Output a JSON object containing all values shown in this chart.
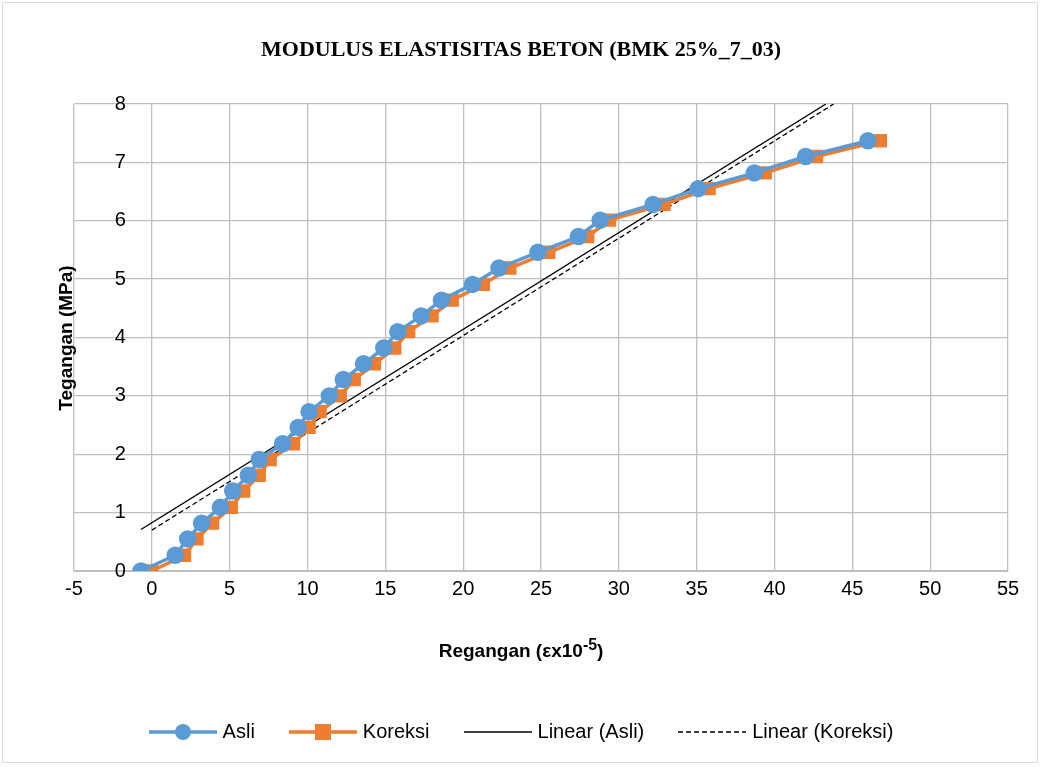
{
  "chart_data": {
    "type": "line",
    "title": "MODULUS ELASTISITAS BETON (BMK 25%_7_03)",
    "xlabel": "Regangan (εx10$^{-5}$)",
    "ylabel": "Tegangan (MPa)",
    "xlim": [
      -5,
      55
    ],
    "xticks": [
      -5,
      0,
      5,
      10,
      15,
      20,
      25,
      30,
      35,
      40,
      45,
      50,
      55
    ],
    "ylim": [
      0,
      8
    ],
    "yticks": [
      0,
      1,
      2,
      3,
      4,
      5,
      6,
      7,
      8
    ],
    "grid": true,
    "legend": "bottom",
    "series": [
      {
        "name": "Asli",
        "color": "#5b9bd5",
        "marker": "circle",
        "line_style": "solid",
        "x": [
          -0.7,
          1.5,
          2.3,
          3.2,
          4.4,
          5.2,
          6.2,
          6.9,
          8.4,
          9.4,
          10.1,
          11.4,
          12.3,
          13.6,
          14.9,
          15.8,
          17.3,
          18.6,
          20.6,
          22.3,
          24.8,
          27.4,
          28.8,
          32.2,
          35.1,
          38.7,
          42.0,
          46.0
        ],
        "values": [
          0,
          0.27,
          0.55,
          0.82,
          1.09,
          1.37,
          1.64,
          1.91,
          2.18,
          2.46,
          2.73,
          3.0,
          3.28,
          3.55,
          3.82,
          4.1,
          4.37,
          4.64,
          4.91,
          5.19,
          5.46,
          5.73,
          6.01,
          6.28,
          6.55,
          6.82,
          7.1,
          7.37
        ]
      },
      {
        "name": "Koreksi",
        "color": "#ed7d31",
        "marker": "square",
        "line_style": "solid",
        "x": [
          0,
          2.1,
          2.9,
          3.9,
          5.1,
          5.9,
          6.9,
          7.6,
          9.1,
          10.1,
          10.8,
          12.1,
          13.0,
          14.3,
          15.6,
          16.5,
          18.0,
          19.3,
          21.3,
          23.0,
          25.5,
          28.0,
          29.4,
          32.9,
          35.8,
          39.4,
          42.7,
          46.8
        ],
        "values": [
          0,
          0.27,
          0.55,
          0.82,
          1.09,
          1.37,
          1.64,
          1.91,
          2.18,
          2.46,
          2.73,
          3.0,
          3.28,
          3.55,
          3.82,
          4.1,
          4.37,
          4.64,
          4.91,
          5.19,
          5.46,
          5.73,
          6.01,
          6.28,
          6.55,
          6.82,
          7.1,
          7.37
        ]
      },
      {
        "name": "Linear (Asli)",
        "color": "#000000",
        "marker": "none",
        "line_style": "solid",
        "x": [
          -0.7,
          43.3
        ],
        "values": [
          0.71,
          8
        ]
      },
      {
        "name": "Linear (Koreksi)",
        "color": "#000000",
        "marker": "none",
        "line_style": "dashed",
        "x": [
          0,
          43.8
        ],
        "values": [
          0.7,
          8
        ]
      }
    ]
  }
}
